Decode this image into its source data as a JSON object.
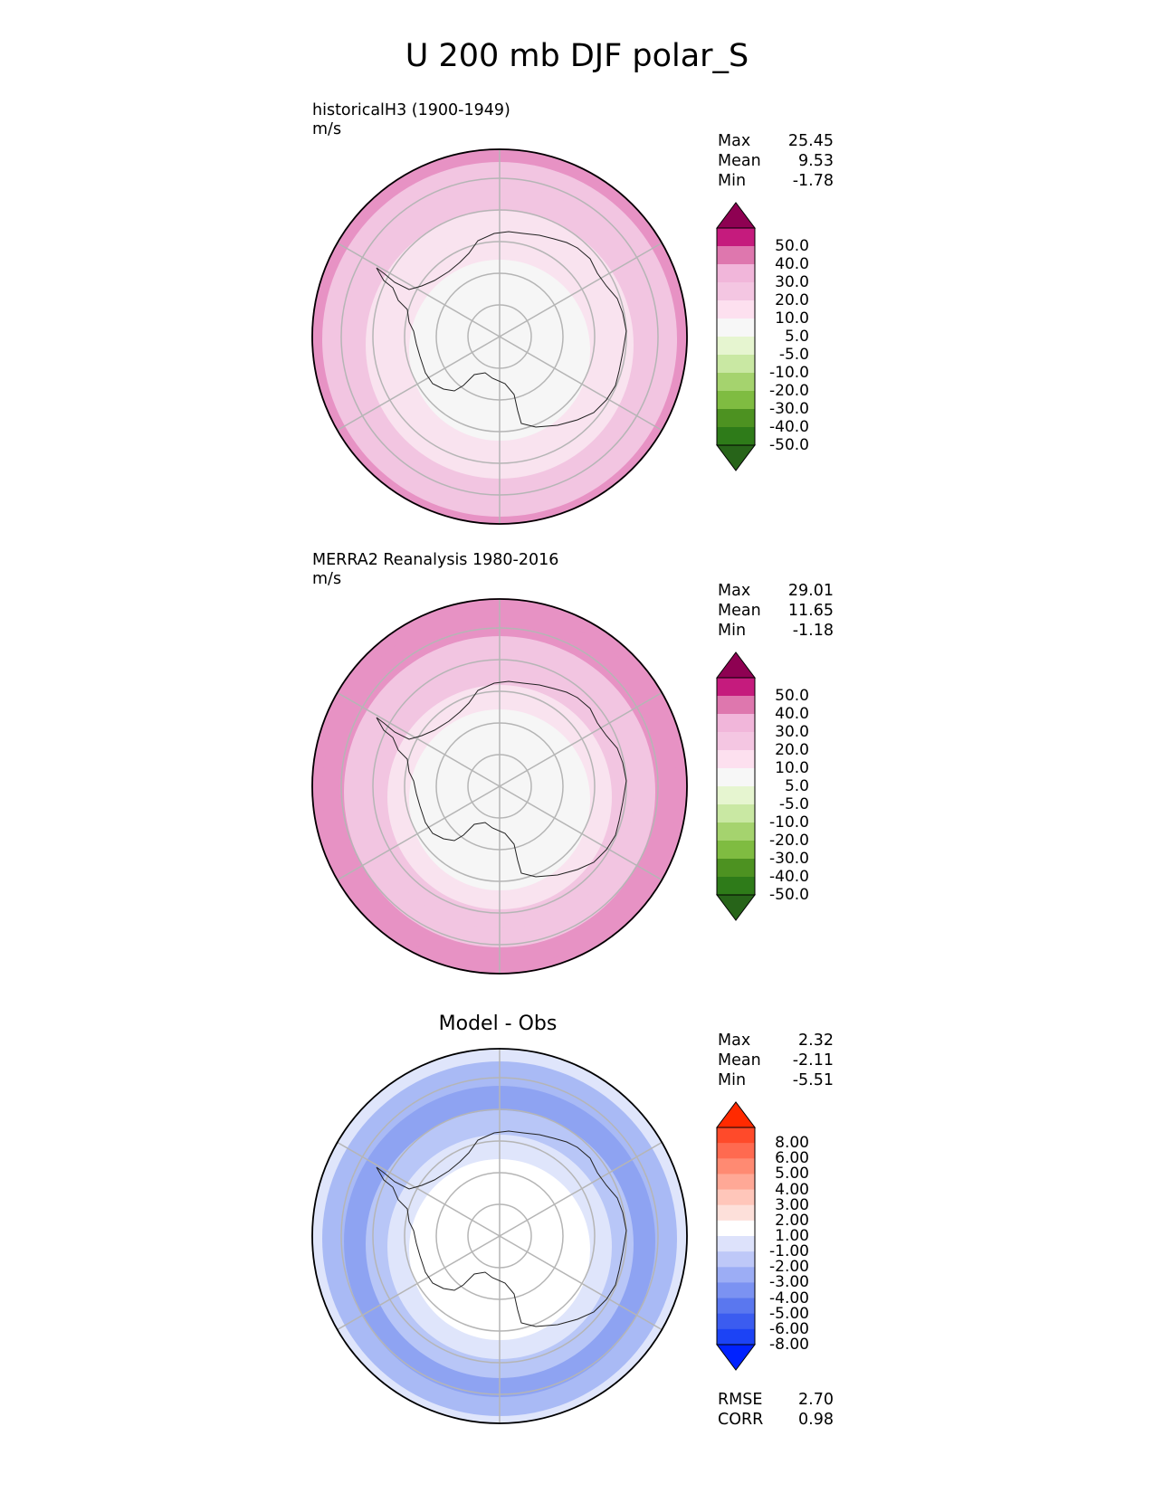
{
  "figure": {
    "title": "U 200 mb DJF polar_S"
  },
  "panels": [
    {
      "title": "historicalH3 (1900-1949)",
      "units": "m/s",
      "stats": {
        "max_label": "Max",
        "max": "25.45",
        "mean_label": "Mean",
        "mean": "9.53",
        "min_label": "Min",
        "min": "-1.78"
      },
      "rings": [
        "#e792c4",
        "#f2c5e1",
        "#f2c5e1",
        "#f9e3ef",
        "#f9e3ef",
        "#f6f6f6"
      ],
      "colorbar": {
        "ticks": [
          "50.0",
          "40.0",
          "30.0",
          "20.0",
          "10.0",
          "5.0",
          "-5.0",
          "-10.0",
          "-20.0",
          "-30.0",
          "-40.0",
          "-50.0"
        ],
        "colors": [
          "#8e0152",
          "#c51b7d",
          "#de77ae",
          "#f1b6da",
          "#f4c6e2",
          "#fde0ef",
          "#f7f7f7",
          "#e6f5d0",
          "#c9e8a3",
          "#a5d36e",
          "#7fbc41",
          "#4d9221",
          "#2e7b19",
          "#276419"
        ]
      }
    },
    {
      "title": "MERRA2 Reanalysis 1980-2016",
      "units": "m/s",
      "stats": {
        "max_label": "Max",
        "max": "29.01",
        "mean_label": "Mean",
        "mean": "11.65",
        "min_label": "Min",
        "min": "-1.18"
      },
      "rings": [
        "#e792c4",
        "#e792c4",
        "#f2c5e1",
        "#f2c5e1",
        "#f9e3ef",
        "#f6f6f6"
      ],
      "colorbar": {
        "ticks": [
          "50.0",
          "40.0",
          "30.0",
          "20.0",
          "10.0",
          "5.0",
          "-5.0",
          "-10.0",
          "-20.0",
          "-30.0",
          "-40.0",
          "-50.0"
        ],
        "colors": [
          "#8e0152",
          "#c51b7d",
          "#de77ae",
          "#f1b6da",
          "#f4c6e2",
          "#fde0ef",
          "#f7f7f7",
          "#e6f5d0",
          "#c9e8a3",
          "#a5d36e",
          "#7fbc41",
          "#4d9221",
          "#2e7b19",
          "#276419"
        ]
      }
    },
    {
      "title": "Model - Obs",
      "stats": {
        "max_label": "Max",
        "max": "2.32",
        "mean_label": "Mean",
        "mean": "-2.11",
        "min_label": "Min",
        "min": "-5.51"
      },
      "rings": [
        "#dfe5fb",
        "#a9baf5",
        "#8ea3f2",
        "#b8c6f7",
        "#dfe5fb",
        "#ffffff"
      ],
      "colorbar": {
        "ticks": [
          "8.00",
          "6.00",
          "5.00",
          "4.00",
          "3.00",
          "2.00",
          "1.00",
          "-1.00",
          "-2.00",
          "-3.00",
          "-4.00",
          "-5.00",
          "-6.00",
          "-8.00"
        ],
        "colors": [
          "#ff2a00",
          "#ff4a2a",
          "#ff6a50",
          "#ff8a72",
          "#ffa896",
          "#ffc6ba",
          "#fde0da",
          "#ffffff",
          "#dde2fb",
          "#bec8f8",
          "#9cadf5",
          "#7b92f2",
          "#5a77ef",
          "#3b5cf0",
          "#1c43f5",
          "#0022ff"
        ]
      },
      "rmse_label": "RMSE",
      "rmse": "2.70",
      "corr_label": "CORR",
      "corr": "0.98"
    }
  ]
}
